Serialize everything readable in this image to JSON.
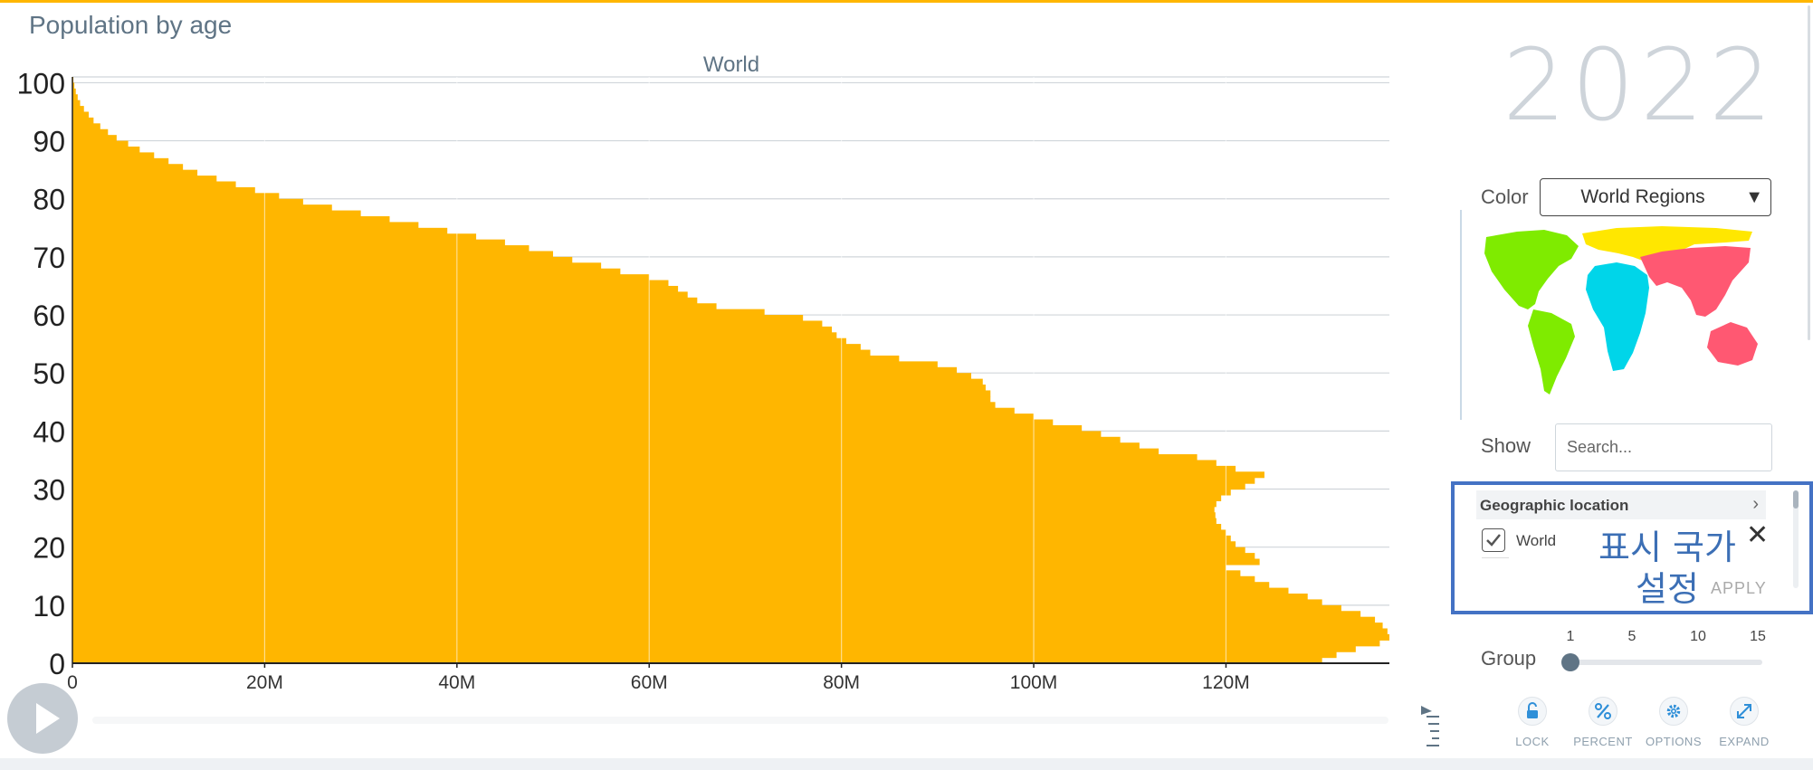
{
  "app": {
    "title": "Population by age"
  },
  "timeline": {
    "year": "2022"
  },
  "chart_data": {
    "type": "bar",
    "orientation": "horizontal",
    "title": "World",
    "xlabel": "",
    "ylabel": "",
    "xlim": [
      0,
      137000000
    ],
    "ylim": [
      0,
      101
    ],
    "x_ticks": [
      0,
      20000000,
      40000000,
      60000000,
      80000000,
      100000000,
      120000000
    ],
    "x_tick_labels": [
      "0",
      "20M",
      "40M",
      "60M",
      "80M",
      "100M",
      "120M"
    ],
    "y_ticks": [
      0,
      10,
      20,
      30,
      40,
      50,
      60,
      70,
      80,
      90,
      100
    ],
    "y_tick_labels": [
      "0",
      "10",
      "20",
      "30",
      "40",
      "50",
      "60",
      "70",
      "80",
      "90",
      "100"
    ],
    "grid": true,
    "bar_color": "#ffb600",
    "series": [
      {
        "ages": [
          0,
          1,
          2,
          3,
          4,
          5,
          6,
          7,
          8,
          9,
          10,
          11,
          12,
          13,
          14,
          15,
          16,
          17,
          18,
          19,
          20,
          21,
          22,
          23,
          24,
          25,
          26,
          27,
          28,
          29,
          30,
          31,
          32,
          33,
          34,
          35,
          36,
          37,
          38,
          39,
          40,
          41,
          42,
          43,
          44,
          45,
          46,
          47,
          48,
          49,
          50,
          51,
          52,
          53,
          54,
          55,
          56,
          57,
          58,
          59,
          60,
          61,
          62,
          63,
          64,
          65,
          66,
          67,
          68,
          69,
          70,
          71,
          72,
          73,
          74,
          75,
          76,
          77,
          78,
          79,
          80,
          81,
          82,
          83,
          84,
          85,
          86,
          87,
          88,
          89,
          90,
          91,
          92,
          93,
          94,
          95,
          96,
          97,
          98,
          99,
          100
        ],
        "values": [
          130000000,
          131500000,
          133500000,
          136000000,
          137000000,
          136800000,
          136300000,
          135500000,
          134000000,
          132000000,
          130000000,
          128500000,
          126500000,
          124500000,
          123000000,
          121500000,
          120000000,
          123500000,
          123000000,
          122000000,
          121000000,
          120500000,
          120000000,
          119500000,
          119000000,
          118900000,
          118800000,
          119000000,
          119500000,
          120500000,
          122000000,
          123000000,
          124000000,
          121000000,
          119000000,
          117000000,
          113000000,
          111000000,
          109000000,
          107000000,
          105000000,
          102000000,
          100000000,
          98000000,
          96000000,
          95500000,
          95500000,
          95000000,
          94700000,
          93500000,
          92000000,
          90000000,
          86000000,
          83000000,
          82000000,
          80500000,
          79500000,
          79000000,
          78000000,
          76000000,
          72000000,
          67000000,
          65000000,
          64000000,
          63000000,
          62000000,
          60000000,
          57000000,
          55000000,
          52000000,
          50000000,
          47500000,
          45000000,
          42000000,
          39000000,
          36000000,
          33000000,
          30000000,
          27000000,
          24000000,
          21500000,
          19000000,
          17000000,
          15000000,
          13000000,
          11500000,
          10000000,
          8500000,
          7000000,
          5800000,
          4600000,
          3700000,
          2900000,
          2200000,
          1700000,
          1200000,
          800000,
          550000,
          350000,
          200000,
          100000
        ]
      }
    ]
  },
  "controls": {
    "color_label": "Color",
    "color_value": "World Regions",
    "show_label": "Show",
    "search_placeholder": "Search...",
    "geo_header": "Geographic location",
    "checked_item": "World",
    "apply_label": "APPLY",
    "korean_note": "표시 국가 설정",
    "group_label": "Group",
    "group_ticks": [
      "1",
      "5",
      "10",
      "15"
    ],
    "group_value": 1
  },
  "buttons": {
    "lock": "LOCK",
    "percent": "PERCENT",
    "options": "OPTIONS",
    "expand": "EXPAND"
  },
  "icons": {
    "play": "play-icon",
    "chevron": "chevron-right-icon",
    "check": "check-icon",
    "close": "close-icon",
    "lock": "lock-icon",
    "percent": "percent-icon",
    "options": "gear-icon",
    "expand": "expand-icon",
    "toggle": "sidebar-toggle-icon"
  },
  "colors": {
    "accent": "#ffb600",
    "region_americas": "#7feb00",
    "region_africa": "#00d5e9",
    "region_europe": "#ffe700",
    "region_asia": "#ff5872",
    "highlight_box": "#4472c4"
  }
}
